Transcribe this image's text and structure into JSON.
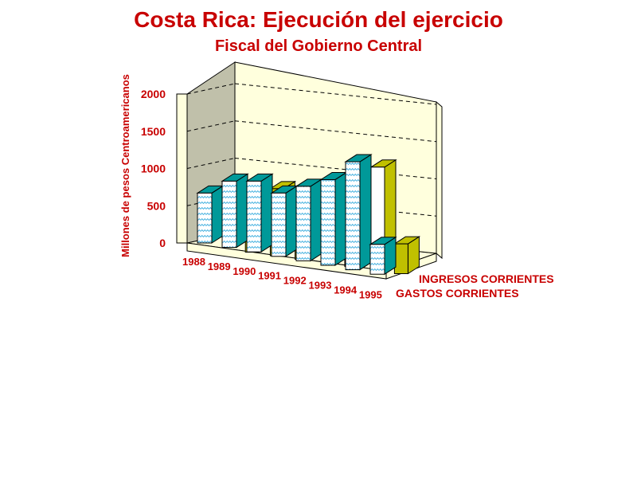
{
  "chart_data": {
    "type": "bar",
    "title": "Costa Rica: Ejecución del ejercicio",
    "subtitle": "Fiscal del Gobierno Central",
    "ylabel": "Millones de pesos Centroamericanos",
    "xlabel": "",
    "ylim": [
      0,
      2000
    ],
    "yticks": [
      0,
      500,
      1000,
      1500,
      2000
    ],
    "grid": true,
    "categories": [
      "1988",
      "1989",
      "1990",
      "1991",
      "1992",
      "1993",
      "1994",
      "1995"
    ],
    "series": [
      {
        "name": "GASTOS CORRIENTES",
        "values": [
          670,
          890,
          950,
          850,
          1000,
          1150,
          1450,
          400
        ]
      },
      {
        "name": "INGRESOS CORRIENTES",
        "values": [
          null,
          850,
          900,
          850,
          null,
          950,
          null,
          400
        ]
      }
    ],
    "overlay_bars": [
      {
        "category": "1995",
        "value": 1350
      }
    ],
    "colors": {
      "bar_face": "#ffffff",
      "bar_pattern": "#33aadd",
      "gastos_side": "#009999",
      "ingresos": "#c0c000",
      "wall": "#ffffdd",
      "left_wall": "#c0c0aa",
      "text": "#c80000"
    }
  }
}
